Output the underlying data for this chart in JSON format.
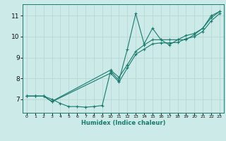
{
  "title": "",
  "xlabel": "Humidex (Indice chaleur)",
  "bg_color": "#cceae7",
  "line_color": "#1a7a6e",
  "grid_color": "#b8d8d4",
  "xlim": [
    -0.5,
    23.5
  ],
  "ylim": [
    6.35,
    11.55
  ],
  "xticks": [
    0,
    1,
    2,
    3,
    4,
    5,
    6,
    7,
    8,
    9,
    10,
    11,
    12,
    13,
    14,
    15,
    16,
    17,
    18,
    19,
    20,
    21,
    22,
    23
  ],
  "yticks": [
    7,
    8,
    9,
    10,
    11
  ],
  "line1_x": [
    0,
    1,
    2,
    3,
    4,
    5,
    6,
    7,
    8,
    9,
    10,
    11,
    12,
    13,
    14,
    15,
    16,
    17,
    18,
    19,
    20,
    21,
    22,
    23
  ],
  "line1_y": [
    7.15,
    7.15,
    7.15,
    7.0,
    6.8,
    6.65,
    6.65,
    6.62,
    6.65,
    6.7,
    8.35,
    7.9,
    9.4,
    11.1,
    9.65,
    10.4,
    9.85,
    9.6,
    9.85,
    9.85,
    10.1,
    10.4,
    11.0,
    11.2
  ],
  "line2_x": [
    0,
    1,
    2,
    3,
    10,
    11,
    12,
    13,
    14,
    15,
    16,
    17,
    18,
    19,
    20,
    21,
    22,
    23
  ],
  "line2_y": [
    7.15,
    7.15,
    7.15,
    6.9,
    8.4,
    8.05,
    8.65,
    9.3,
    9.6,
    9.85,
    9.85,
    9.85,
    9.85,
    10.05,
    10.15,
    10.4,
    10.9,
    11.2
  ],
  "line3_x": [
    0,
    1,
    2,
    3,
    10,
    11,
    12,
    13,
    14,
    15,
    16,
    17,
    18,
    19,
    20,
    21,
    22,
    23
  ],
  "line3_y": [
    7.15,
    7.15,
    7.15,
    6.88,
    8.25,
    7.82,
    8.5,
    9.15,
    9.4,
    9.65,
    9.7,
    9.7,
    9.72,
    9.9,
    10.0,
    10.25,
    10.75,
    11.1
  ]
}
